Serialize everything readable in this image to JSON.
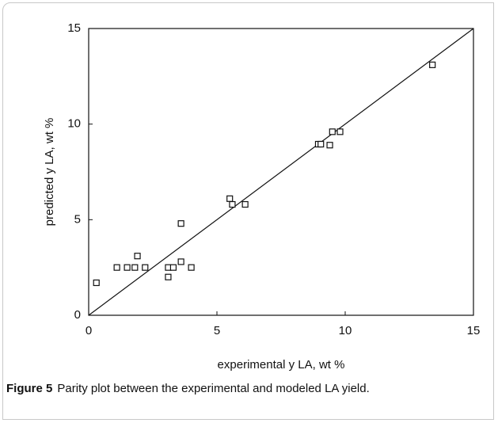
{
  "chart_data": {
    "type": "scatter",
    "x_label": "experimental y LA, wt %",
    "y_label": "predicted y LA, wt %",
    "x": [
      0.3,
      1.1,
      1.5,
      1.8,
      1.9,
      2.2,
      3.1,
      3.1,
      3.3,
      3.6,
      3.6,
      4.0,
      5.5,
      5.6,
      6.1,
      8.95,
      9.05,
      9.4,
      9.5,
      9.8,
      13.4
    ],
    "values": [
      1.7,
      2.5,
      2.5,
      2.5,
      3.1,
      2.5,
      2.5,
      2.0,
      2.5,
      2.8,
      4.8,
      2.5,
      6.1,
      5.8,
      5.8,
      8.95,
      8.95,
      8.9,
      9.6,
      9.6,
      13.1
    ],
    "color": "#111111",
    "xlim": [
      0,
      15
    ],
    "ylim": [
      0,
      15
    ],
    "xticks": [
      0,
      5,
      10,
      15
    ],
    "yticks": [
      0,
      5,
      10,
      15
    ]
  },
  "caption": {
    "label": "Figure 5",
    "text": "Parity plot between the experimental and modeled LA yield."
  }
}
